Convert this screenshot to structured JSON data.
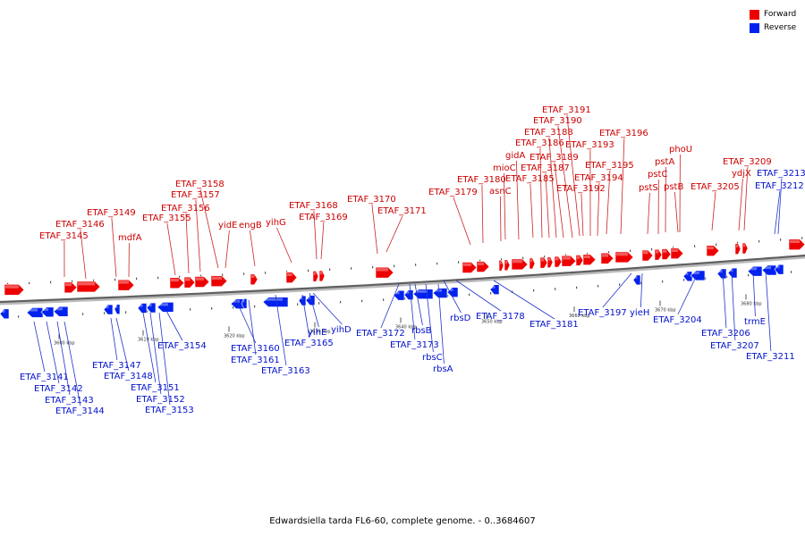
{
  "caption": "Edwardsiella tarda FL6-60, complete genome. - 0..3684607",
  "legend": {
    "forward": {
      "label": "Forward",
      "color": "#ee0000"
    },
    "reverse": {
      "label": "Reverse",
      "color": "#0022ee"
    }
  },
  "axis_labels": [
    "3600 kbp",
    "3610 kbp",
    "3620 kbp",
    "3630 kbp",
    "3640 kbp",
    "3650 kbp",
    "3660 kbp",
    "3670 kbp",
    "3680 kbp"
  ],
  "forward_labels": [
    "ETAF_3145",
    "ETAF_3146",
    "ETAF_3149",
    "mdfA",
    "ETAF_3155",
    "ETAF_3156",
    "ETAF_3157",
    "ETAF_3158",
    "yidE",
    "engB",
    "yihG",
    "ETAF_3168",
    "ETAF_3169",
    "ETAF_3170",
    "ETAF_3171",
    "ETAF_3179",
    "ETAF_3180",
    "asnC",
    "mioC",
    "gidA",
    "ETAF_3185",
    "ETAF_3186",
    "ETAF_3187",
    "ETAF_3188",
    "ETAF_3189",
    "ETAF_3190",
    "ETAF_3191",
    "ETAF_3192",
    "ETAF_3193",
    "ETAF_3194",
    "ETAF_3195",
    "ETAF_3196",
    "pstS",
    "pstC",
    "pstA",
    "pstB",
    "phoU",
    "ETAF_3205",
    "ydjX",
    "ETAF_3209"
  ],
  "reverse_labels": [
    "ETAF_3141",
    "ETAF_3142",
    "ETAF_3143",
    "ETAF_3144",
    "ETAF_3147",
    "ETAF_3148",
    "ETAF_3151",
    "ETAF_3152",
    "ETAF_3153",
    "ETAF_3154",
    "ETAF_3160",
    "ETAF_3161",
    "ETAF_3163",
    "ETAF_3165",
    "yihE",
    "yihD",
    "ETAF_3172",
    "ETAF_3173",
    "rbsB",
    "rbsC",
    "rbsA",
    "rbsD",
    "ETAF_3178",
    "ETAF_3181",
    "ETAF_3197",
    "yieH",
    "ETAF_3204",
    "ETAF_3206",
    "ETAF_3207",
    "trmE",
    "ETAF_3211",
    "ETAF_3213",
    "ETAF_3212"
  ]
}
